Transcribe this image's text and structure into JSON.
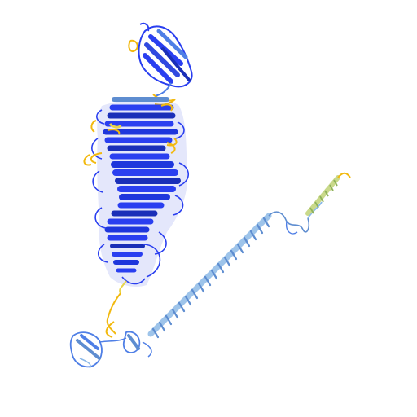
{
  "colors": {
    "background": "#ffffff",
    "very_high": "#0b2ee0",
    "very_high_dark": "#1a2fb8",
    "high": "#4f7fe6",
    "high_light": "#8ab8e8",
    "low": "#e8d44a",
    "very_low": "#f2b90f",
    "strand": "#2a3ff0",
    "helix_light": "#9ec4ea",
    "helix_dark": "#5e8dd0"
  },
  "structure": {
    "kind": "protein-cartoon-ribbon",
    "domains": [
      "top-beta-sandwich",
      "beta-solenoid-core",
      "lower-small-domain",
      "long-alpha-helix",
      "c-terminal-helix"
    ]
  }
}
